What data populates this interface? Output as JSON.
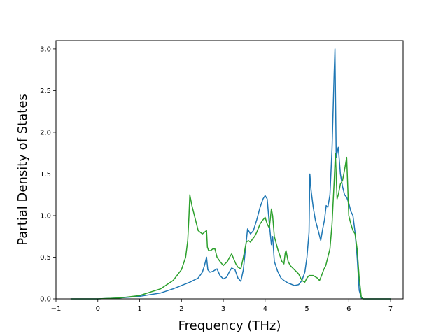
{
  "chart_data": {
    "type": "line",
    "title": "",
    "xlabel": "Frequency (THz)",
    "ylabel": "Partial Density of States",
    "xlim": [
      -1.0,
      7.3
    ],
    "ylim": [
      0.0,
      3.1
    ],
    "xticks": [
      -1,
      0,
      1,
      2,
      3,
      4,
      5,
      6,
      7
    ],
    "yticks": [
      0.0,
      0.5,
      1.0,
      1.5,
      2.0,
      2.5,
      3.0
    ],
    "xtick_labels": [
      "−1",
      "0",
      "1",
      "2",
      "3",
      "4",
      "5",
      "6",
      "7"
    ],
    "ytick_labels": [
      "0.0",
      "0.5",
      "1.0",
      "1.5",
      "2.0",
      "2.5",
      "3.0"
    ],
    "grid": false,
    "legend": false,
    "series": [
      {
        "color": "#1f77b4",
        "x": [
          -0.65,
          0.0,
          0.5,
          1.0,
          1.5,
          1.8,
          2.0,
          2.2,
          2.4,
          2.5,
          2.55,
          2.6,
          2.63,
          2.68,
          2.75,
          2.85,
          2.92,
          3.0,
          3.08,
          3.15,
          3.2,
          3.28,
          3.35,
          3.42,
          3.48,
          3.52,
          3.58,
          3.65,
          3.72,
          3.8,
          3.88,
          3.95,
          4.0,
          4.05,
          4.1,
          4.13,
          4.15,
          4.18,
          4.22,
          4.3,
          4.38,
          4.45,
          4.55,
          4.7,
          4.8,
          4.88,
          4.95,
          5.0,
          5.05,
          5.07,
          5.1,
          5.15,
          5.2,
          5.28,
          5.33,
          5.38,
          5.42,
          5.46,
          5.5,
          5.55,
          5.6,
          5.65,
          5.67,
          5.7,
          5.75,
          5.8,
          5.85,
          5.9,
          5.95,
          6.0,
          6.05,
          6.1,
          6.15,
          6.2,
          6.25,
          6.3,
          6.35,
          6.5,
          7.0
        ],
        "values": [
          0.0,
          0.0,
          0.01,
          0.03,
          0.07,
          0.12,
          0.16,
          0.2,
          0.25,
          0.32,
          0.4,
          0.5,
          0.35,
          0.32,
          0.33,
          0.36,
          0.28,
          0.24,
          0.26,
          0.33,
          0.37,
          0.35,
          0.25,
          0.21,
          0.35,
          0.55,
          0.84,
          0.78,
          0.82,
          0.95,
          1.1,
          1.2,
          1.24,
          1.2,
          0.9,
          0.75,
          0.65,
          0.75,
          0.45,
          0.33,
          0.25,
          0.22,
          0.19,
          0.16,
          0.17,
          0.22,
          0.32,
          0.5,
          0.8,
          1.5,
          1.3,
          1.1,
          0.95,
          0.8,
          0.7,
          0.85,
          0.95,
          1.12,
          1.1,
          1.25,
          1.8,
          2.7,
          3.0,
          1.7,
          1.82,
          1.5,
          1.35,
          1.25,
          1.22,
          1.15,
          1.05,
          1.0,
          0.8,
          0.5,
          0.1,
          0.01,
          0.0,
          0.0,
          0.0
        ]
      },
      {
        "color": "#2ca02c",
        "x": [
          -0.65,
          0.0,
          0.5,
          1.0,
          1.5,
          1.8,
          2.0,
          2.1,
          2.15,
          2.18,
          2.2,
          2.25,
          2.3,
          2.35,
          2.4,
          2.5,
          2.6,
          2.62,
          2.65,
          2.7,
          2.75,
          2.8,
          2.85,
          2.92,
          3.0,
          3.1,
          3.15,
          3.2,
          3.25,
          3.3,
          3.35,
          3.42,
          3.48,
          3.55,
          3.6,
          3.65,
          3.7,
          3.75,
          3.8,
          3.88,
          3.95,
          4.0,
          4.05,
          4.1,
          4.15,
          4.18,
          4.22,
          4.3,
          4.4,
          4.45,
          4.48,
          4.5,
          4.55,
          4.6,
          4.7,
          4.8,
          4.88,
          4.95,
          5.0,
          5.05,
          5.15,
          5.25,
          5.3,
          5.35,
          5.4,
          5.45,
          5.5,
          5.55,
          5.6,
          5.65,
          5.68,
          5.72,
          5.75,
          5.8,
          5.85,
          5.9,
          5.95,
          6.0,
          6.05,
          6.1,
          6.15,
          6.2,
          6.25,
          6.3,
          6.35,
          6.5,
          7.0
        ],
        "values": [
          0.0,
          0.0,
          0.01,
          0.04,
          0.12,
          0.22,
          0.35,
          0.5,
          0.7,
          1.0,
          1.25,
          1.12,
          1.02,
          0.92,
          0.82,
          0.78,
          0.82,
          0.62,
          0.58,
          0.58,
          0.6,
          0.6,
          0.5,
          0.45,
          0.4,
          0.45,
          0.5,
          0.54,
          0.48,
          0.42,
          0.38,
          0.36,
          0.5,
          0.68,
          0.7,
          0.68,
          0.72,
          0.75,
          0.8,
          0.9,
          0.95,
          0.98,
          0.9,
          0.85,
          1.08,
          1.0,
          0.75,
          0.6,
          0.45,
          0.42,
          0.55,
          0.58,
          0.45,
          0.4,
          0.35,
          0.3,
          0.22,
          0.2,
          0.25,
          0.28,
          0.28,
          0.25,
          0.22,
          0.28,
          0.35,
          0.4,
          0.5,
          0.6,
          0.9,
          1.4,
          1.75,
          1.2,
          1.25,
          1.38,
          1.42,
          1.55,
          1.7,
          1.0,
          0.9,
          0.82,
          0.78,
          0.6,
          0.25,
          0.02,
          0.0,
          0.0,
          0.0
        ]
      }
    ]
  }
}
